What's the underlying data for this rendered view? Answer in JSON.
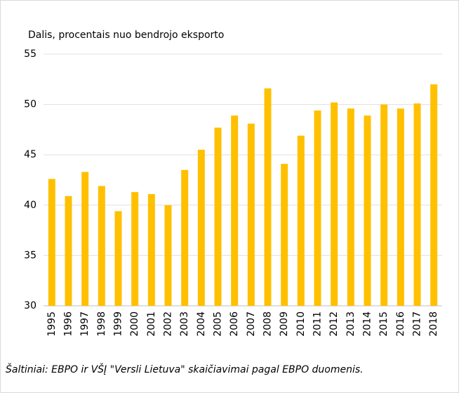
{
  "chart_data": {
    "type": "bar",
    "y_label": "Dalis, procentais nuo bendrojo eksporto",
    "categories": [
      "1995",
      "1996",
      "1997",
      "1998",
      "1999",
      "2000",
      "2001",
      "2002",
      "2003",
      "2004",
      "2005",
      "2006",
      "2007",
      "2008",
      "2009",
      "2010",
      "2011",
      "2012",
      "2013",
      "2014",
      "2015",
      "2016",
      "2017",
      "2018"
    ],
    "values": [
      42.6,
      40.9,
      43.3,
      41.9,
      39.4,
      41.3,
      41.1,
      40.0,
      43.5,
      45.5,
      47.7,
      48.9,
      48.1,
      51.6,
      44.1,
      46.9,
      49.4,
      50.2,
      49.6,
      48.9,
      50.0,
      49.6,
      50.1,
      52.0
    ],
    "color": "#ffc000",
    "ylim": [
      30,
      55
    ],
    "yticks": [
      30,
      35,
      40,
      45,
      50,
      55
    ],
    "grid": true,
    "source": "Šaltiniai:  EBPO ir VŠĮ \"Versli Lietuva\" skaičiavimai pagal EBPO duomenis."
  }
}
